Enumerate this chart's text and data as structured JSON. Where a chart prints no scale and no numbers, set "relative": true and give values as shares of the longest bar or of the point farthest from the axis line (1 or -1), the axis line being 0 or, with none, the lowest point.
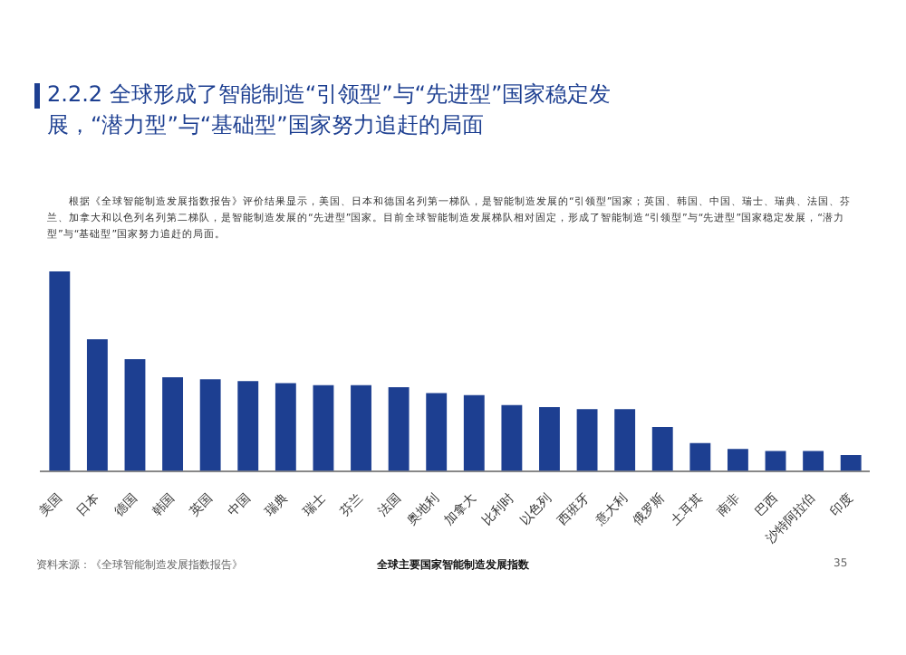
{
  "chart_data": {
    "type": "bar",
    "title": "2.2.2 全球形成了智能制造“引领型”与“先进型”国家稳定发展，“潜力型”与“基础型”国家努力追赶的局面",
    "subtitle": "根据《全球智能制造发展指数报告》评价结果显示，美国、日本和德国名列第一梯队，是智能制造发展的“引领型”国家；英国、韩国、中国、瑞士、瑞典、法国、芬兰、加拿大和以色列名列第二梯队，是智能制造发展的“先进型”国家。目前全球智能制造发展梯队相对固定，形成了智能制造“引领型”与“先进型”国家稳定发展，“潜力型”与“基础型”国家努力追赶的局面。",
    "categories": [
      "美国",
      "日本",
      "德国",
      "韩国",
      "英国",
      "中国",
      "瑞典",
      "瑞士",
      "芬兰",
      "法国",
      "奥地利",
      "加拿大",
      "比利时",
      "以色列",
      "西班牙",
      "意大利",
      "俄罗斯",
      "土耳其",
      "南非",
      "巴西",
      "沙特阿拉伯",
      "印度"
    ],
    "values": [
      1,
      0.66,
      0.56,
      0.47,
      0.46,
      0.45,
      0.44,
      0.43,
      0.43,
      0.42,
      0.39,
      0.38,
      0.33,
      0.32,
      0.31,
      0.31,
      0.22,
      0.14,
      0.11,
      0.1,
      0.1,
      0.08
    ],
    "color": "#1d3f91",
    "relative": true,
    "grid": false,
    "legend": false,
    "annotations": [
      "全球主要国家智能制造发展指数",
      "资料来源：《全球智能制造发展指数报告》",
      "35"
    ]
  }
}
